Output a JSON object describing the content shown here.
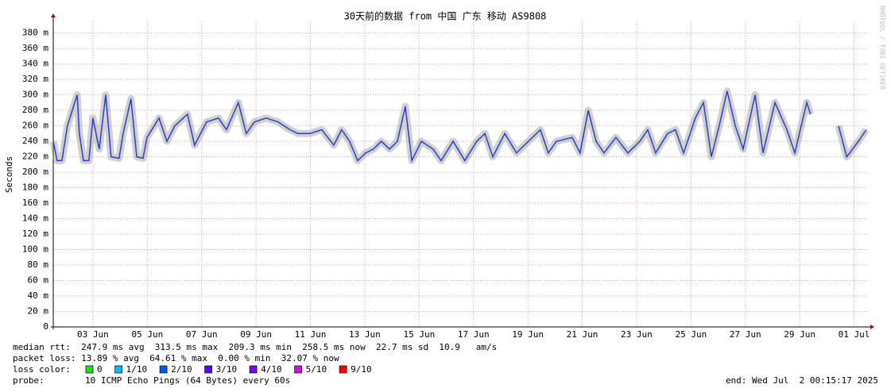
{
  "chart_data": {
    "type": "line",
    "title": "30天前的数据 from 中国 广东 移动 AS9808",
    "y_label": "Seconds",
    "watermark": "RRDTOOL / TOBI OETIKER",
    "xlim": [
      1.54,
      31.54
    ],
    "xticks": [
      {
        "value": 3,
        "label": "03 Jun"
      },
      {
        "value": 5,
        "label": "05 Jun"
      },
      {
        "value": 7,
        "label": "07 Jun"
      },
      {
        "value": 9,
        "label": "09 Jun"
      },
      {
        "value": 11,
        "label": "11 Jun"
      },
      {
        "value": 13,
        "label": "13 Jun"
      },
      {
        "value": 15,
        "label": "15 Jun"
      },
      {
        "value": 17,
        "label": "17 Jun"
      },
      {
        "value": 19,
        "label": "19 Jun"
      },
      {
        "value": 21,
        "label": "21 Jun"
      },
      {
        "value": 23,
        "label": "23 Jun"
      },
      {
        "value": 25,
        "label": "25 Jun"
      },
      {
        "value": 27,
        "label": "27 Jun"
      },
      {
        "value": 29,
        "label": "29 Jun"
      },
      {
        "value": 31,
        "label": "01 Jul"
      }
    ],
    "ylim": [
      0,
      395
    ],
    "yticks": [
      0,
      {
        "value": 20,
        "label": "20 m"
      },
      {
        "value": 40,
        "label": "40 m"
      },
      {
        "value": 60,
        "label": "60 m"
      },
      {
        "value": 80,
        "label": "80 m"
      },
      {
        "value": 100,
        "label": "100 m"
      },
      {
        "value": 120,
        "label": "120 m"
      },
      {
        "value": 140,
        "label": "140 m"
      },
      {
        "value": 160,
        "label": "160 m"
      },
      {
        "value": 180,
        "label": "180 m"
      },
      {
        "value": 200,
        "label": "200 m"
      },
      {
        "value": 220,
        "label": "220 m"
      },
      {
        "value": 240,
        "label": "240 m"
      },
      {
        "value": 260,
        "label": "260 m"
      },
      {
        "value": 280,
        "label": "280 m"
      },
      {
        "value": 300,
        "label": "300 m"
      },
      {
        "value": 320,
        "label": "320 m"
      },
      {
        "value": 340,
        "label": "340 m"
      },
      {
        "value": 360,
        "label": "360 m"
      },
      {
        "value": 380,
        "label": "380 m"
      }
    ],
    "grid": true,
    "series": [
      {
        "color": "#2a3fc8",
        "x": [
          1.54,
          1.68,
          1.86,
          2.06,
          2.42,
          2.5,
          2.65,
          2.85,
          3.0,
          3.23,
          3.47,
          3.67,
          3.96,
          4.11,
          4.4,
          4.61,
          4.84,
          4.99,
          5.43,
          5.72,
          6.01,
          6.48,
          6.74,
          7.18,
          7.62,
          7.91,
          8.35,
          8.64,
          8.94,
          9.37,
          9.81,
          10.25,
          10.54,
          10.98,
          11.42,
          11.86,
          12.15,
          12.44,
          12.74,
          13.03,
          13.32,
          13.61,
          13.91,
          14.2,
          14.49,
          14.73,
          15.08,
          15.51,
          15.81,
          16.25,
          16.68,
          17.12,
          17.42,
          17.71,
          18.15,
          18.58,
          19.02,
          19.46,
          19.75,
          20.05,
          20.63,
          20.92,
          21.22,
          21.51,
          21.8,
          22.24,
          22.68,
          23.12,
          23.41,
          23.7,
          24.14,
          24.43,
          24.73,
          25.16,
          25.46,
          25.75,
          26.04,
          26.33,
          26.63,
          26.92,
          27.36,
          27.65,
          28.09,
          28.53,
          28.82,
          29.26,
          29.4,
          29.7,
          30.43,
          30.73,
          31.16,
          31.45
        ],
        "values": [
          240,
          215,
          215,
          260,
          300,
          250,
          215,
          215,
          270,
          230,
          300,
          220,
          218,
          250,
          295,
          220,
          218,
          245,
          270,
          240,
          260,
          275,
          235,
          265,
          270,
          255,
          290,
          250,
          265,
          270,
          265,
          255,
          250,
          250,
          255,
          235,
          255,
          240,
          215,
          225,
          230,
          240,
          230,
          240,
          285,
          215,
          240,
          230,
          215,
          240,
          215,
          240,
          250,
          220,
          250,
          225,
          240,
          255,
          225,
          240,
          245,
          225,
          280,
          240,
          225,
          245,
          225,
          240,
          255,
          225,
          250,
          255,
          225,
          270,
          290,
          220,
          260,
          305,
          260,
          230,
          300,
          225,
          290,
          255,
          225,
          290,
          275,
          null,
          260,
          220,
          240,
          255
        ]
      }
    ],
    "stats": [
      "median rtt:  247.9 ms avg  313.5 ms max  209.3 ms min  258.5 ms now  22.7 ms sd  10.9   am/s",
      "packet loss: 13.89 % avg  64.61 % max  0.00 % min  32.07 % now"
    ],
    "loss_label": "loss color:",
    "loss_colors": [
      {
        "name": "0",
        "color": "#20e020"
      },
      {
        "name": "1/10",
        "color": "#00b8ff"
      },
      {
        "name": "2/10",
        "color": "#0059ff"
      },
      {
        "name": "3/10",
        "color": "#5e00ff"
      },
      {
        "name": "4/10",
        "color": "#7e00ff"
      },
      {
        "name": "5/10",
        "color": "#dd00ff"
      },
      {
        "name": "9/10",
        "color": "#ff0000"
      }
    ],
    "probe_label": "probe:",
    "probe": "10 ICMP Echo Pings (64 Bytes) every 60s",
    "end": "end: Wed Jul  2 00:15:17 2025"
  }
}
